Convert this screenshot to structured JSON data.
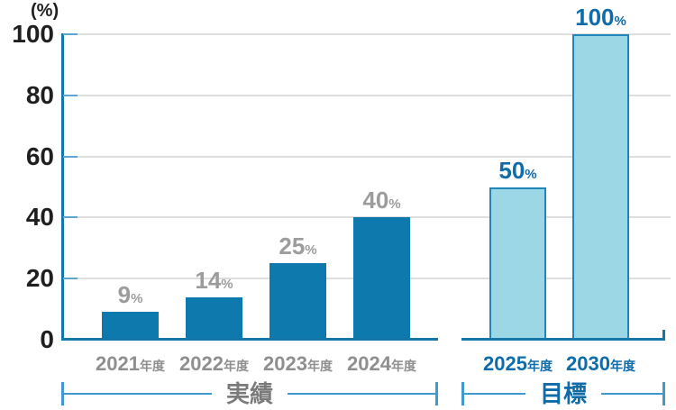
{
  "chart_data": {
    "type": "bar",
    "title": "",
    "unit_label": "(%)",
    "ylim": [
      0,
      100
    ],
    "y_ticks": [
      0,
      20,
      40,
      60,
      80,
      100
    ],
    "grid": true,
    "legend": "none",
    "groups": [
      {
        "name": "実績",
        "style": "actual",
        "categories": [
          "2021年度",
          "2022年度",
          "2023年度",
          "2024年度"
        ],
        "values": [
          9,
          14,
          25,
          40
        ],
        "value_suffix": "%"
      },
      {
        "name": "目標",
        "style": "target",
        "categories": [
          "2025年度",
          "2030年度"
        ],
        "values": [
          50,
          100
        ],
        "value_suffix": "%"
      }
    ]
  },
  "colors": {
    "bar_actual": "#0e79ad",
    "bar_target_fill": "#9bd7e5",
    "bar_target_border": "#1e86b9",
    "axis": "#1477a9",
    "tick": "#5aa8d2",
    "grid": "#dedede",
    "y_label": "#1f1f1f",
    "value_label_actual": "#9c9c9c",
    "value_label_target": "#106ca8",
    "x_label_actual": "#8f8f8f",
    "x_label_target": "#106ca8",
    "bracket_line": "#4299cf",
    "bracket_label_actual": "#7a7a7a",
    "bracket_label_target": "#106ca8"
  }
}
